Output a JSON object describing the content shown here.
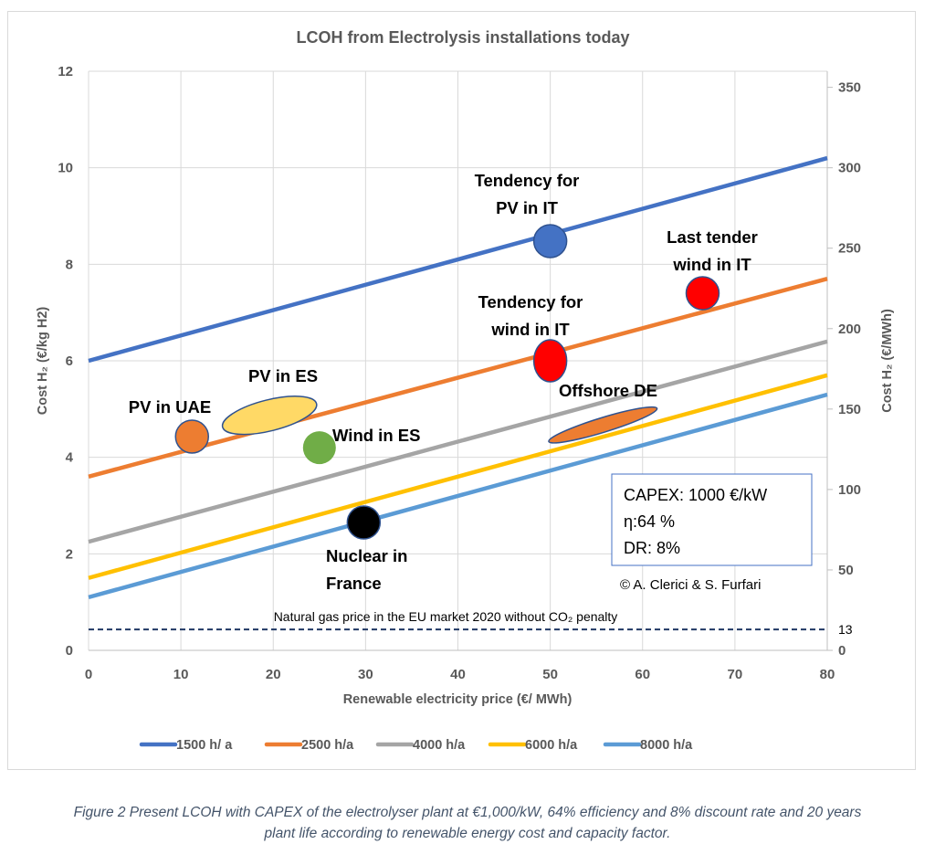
{
  "chart_data": {
    "type": "line",
    "title": "LCOH from Electrolysis installations today",
    "xlabel": "Renewable electricity price (€/ MWh)",
    "ylabel": "Cost H₂ (€/kg H2)",
    "ylabel_secondary": "Cost H₂ (€/MWh)",
    "xlim": [
      0,
      80
    ],
    "ylim": [
      0,
      12
    ],
    "ylim_secondary": [
      0,
      360
    ],
    "x_ticks": [
      0,
      10,
      20,
      30,
      40,
      50,
      60,
      70,
      80
    ],
    "y_ticks": [
      0,
      2,
      4,
      6,
      8,
      10,
      12
    ],
    "y_ticks_secondary": [
      0,
      13,
      50,
      100,
      150,
      200,
      250,
      300,
      350
    ],
    "grid": true,
    "legend_position": "bottom",
    "series": [
      {
        "name": "1500 h/ a",
        "color": "#4472c4",
        "x": [
          0,
          80
        ],
        "values": [
          6.0,
          10.2
        ]
      },
      {
        "name": "2500 h/a",
        "color": "#ed7d31",
        "x": [
          0,
          80
        ],
        "values": [
          3.6,
          7.7
        ]
      },
      {
        "name": "4000 h/a",
        "color": "#a5a5a5",
        "x": [
          0,
          80
        ],
        "values": [
          2.25,
          6.4
        ]
      },
      {
        "name": "6000 h/a",
        "color": "#ffc000",
        "x": [
          0,
          80
        ],
        "values": [
          1.5,
          5.7
        ]
      },
      {
        "name": "8000 h/a",
        "color": "#5b9bd5",
        "x": [
          0,
          80
        ],
        "values": [
          1.1,
          5.3
        ]
      }
    ],
    "reference_line": {
      "label": "Natural gas price in the EU market 2020 without  CO₂ penalty",
      "value_secondary": 13,
      "value": 0.43,
      "color": "#203864",
      "style": "dashed"
    },
    "markers": [
      {
        "label": [
          "Tendency for",
          "PV in  IT"
        ],
        "x": 50,
        "y": 8.48,
        "shape": "circle",
        "fill": "#4472c4"
      },
      {
        "label": [
          "Last tender",
          "wind in  IT"
        ],
        "x": 66.5,
        "y": 7.4,
        "shape": "circle",
        "fill": "#ff0000"
      },
      {
        "label": [
          "Tendency for",
          "wind in  IT"
        ],
        "x": 50,
        "y": 6.0,
        "shape": "ellipse-vertical",
        "fill": "#ff0000"
      },
      {
        "label": [
          "PV in  ES"
        ],
        "x": 19.6,
        "y": 4.87,
        "shape": "ellipse-tilted",
        "fill": "#ffd966"
      },
      {
        "label": [
          "PV in UAE"
        ],
        "x": 11.2,
        "y": 4.43,
        "shape": "circle",
        "fill": "#ed7d31"
      },
      {
        "label": [
          "Wind in  ES"
        ],
        "x": 25,
        "y": 4.2,
        "shape": "circle",
        "fill": "#70ad47"
      },
      {
        "label": [
          "Offshore DE"
        ],
        "x": 55.7,
        "y": 4.67,
        "shape": "ellipse-flat",
        "fill": "#ed7d31"
      },
      {
        "label": [
          "Nuclear in",
          "France"
        ],
        "x": 29.8,
        "y": 2.65,
        "shape": "circle",
        "fill": "#000000"
      }
    ],
    "annotation_box": [
      "CAPEX: 1000 €/kW",
      "η:64 %",
      "DR: 8%"
    ],
    "copyright": "© A. Clerici & S. Furfari"
  },
  "caption": {
    "line1": "Figure 2 Present LCOH with CAPEX of the electrolyser plant at €1,000/kW, 64% efficiency and 8% discount rate and 20 years",
    "line2": "plant life according to renewable energy cost and capacity factor."
  }
}
